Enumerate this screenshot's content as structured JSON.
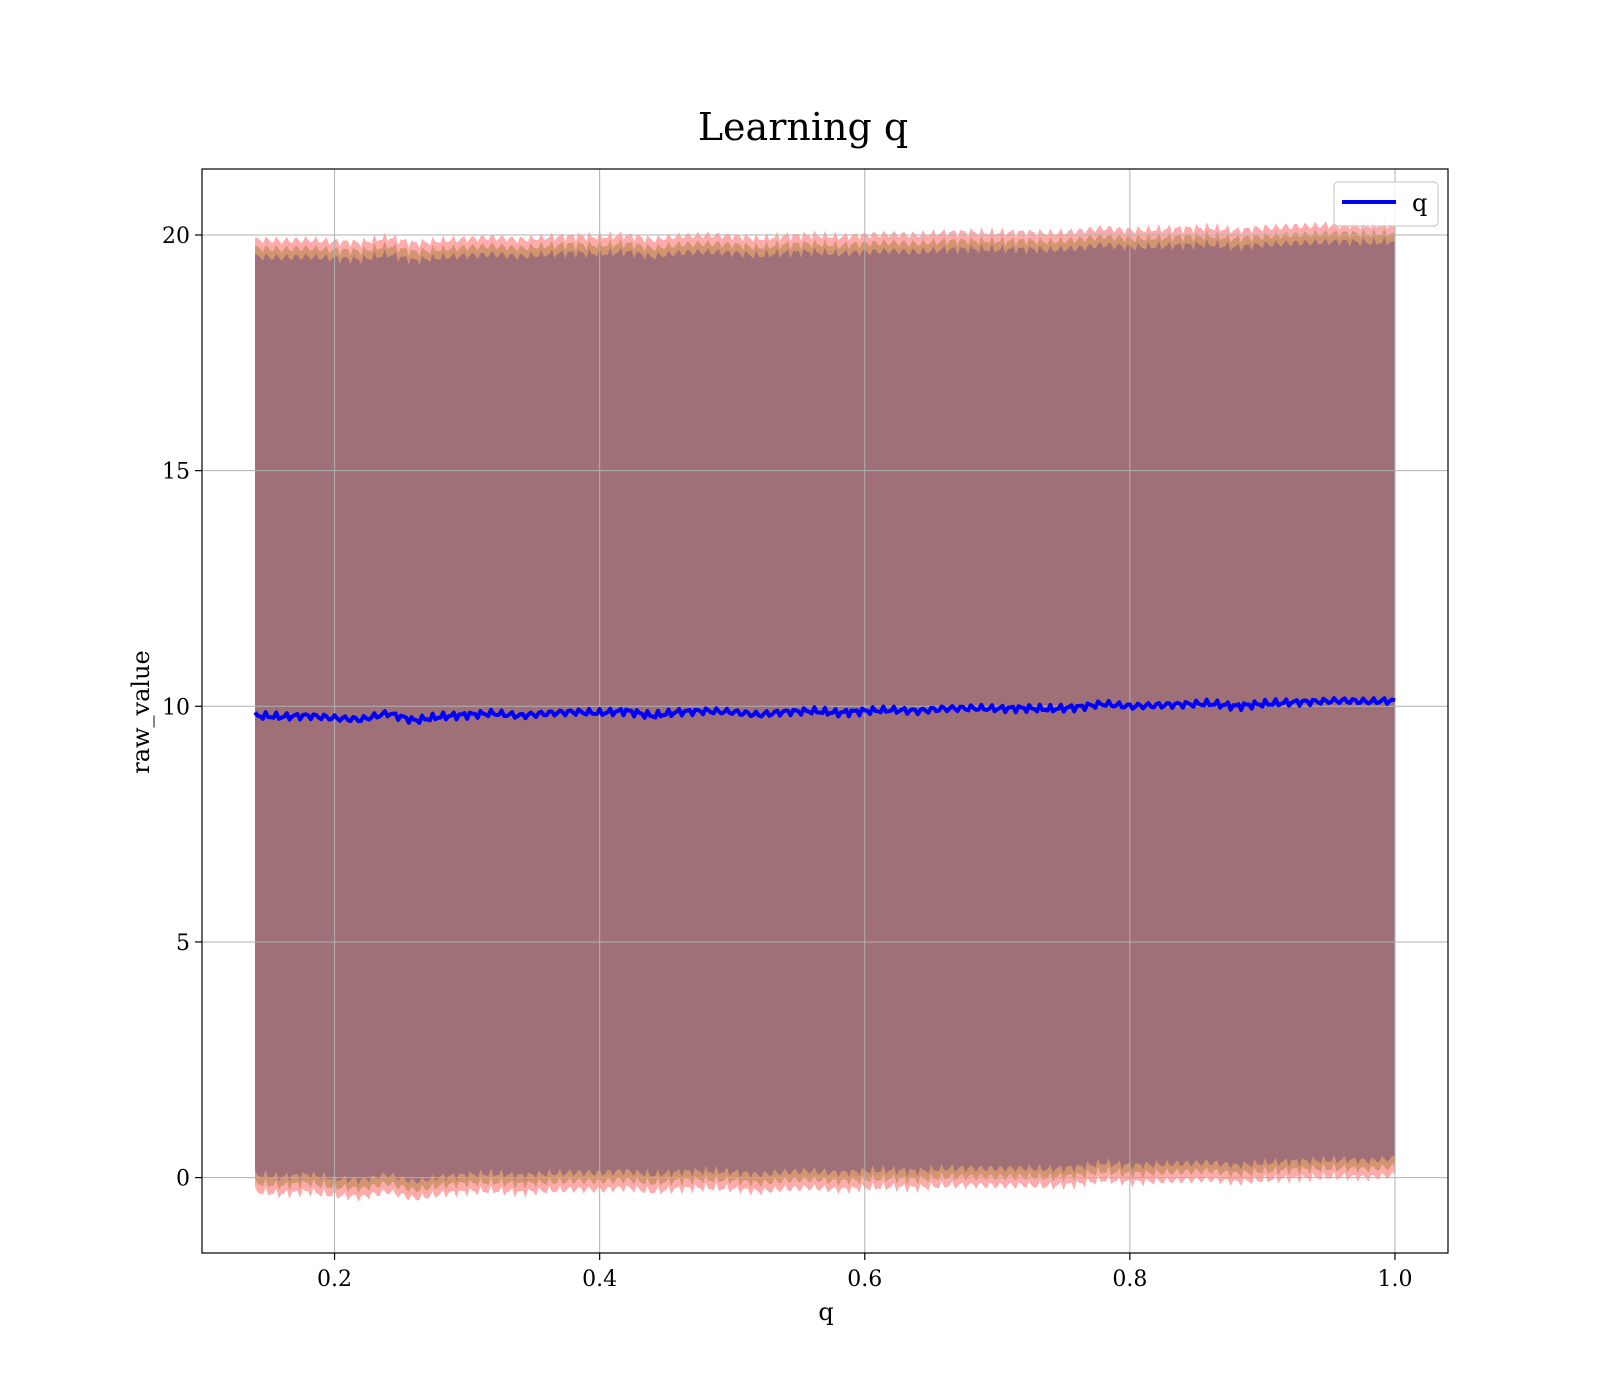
{
  "chart_data": {
    "type": "line",
    "title": "Learning q",
    "xlabel": "q",
    "ylabel": "raw_value",
    "xlim": [
      0.1,
      1.04
    ],
    "ylim": [
      -1.6,
      21.4
    ],
    "xticks": [
      0.2,
      0.4,
      0.6,
      0.8,
      1.0
    ],
    "xtick_labels": [
      "0.2",
      "0.4",
      "0.6",
      "0.8",
      "1.0"
    ],
    "yticks": [
      0,
      5,
      10,
      15,
      20
    ],
    "ytick_labels": [
      "0",
      "5",
      "10",
      "15",
      "20"
    ],
    "grid": true,
    "legend": {
      "placement": "top-right",
      "entries": [
        "q"
      ]
    },
    "colors": {
      "line": "#0000ff",
      "band_outer": "#ff6666",
      "band_mid": "#c89060",
      "band_inner": "#a07078"
    },
    "series": [
      {
        "name": "q",
        "x": [
          0.14,
          0.16,
          0.18,
          0.2,
          0.22,
          0.24,
          0.26,
          0.28,
          0.3,
          0.32,
          0.34,
          0.36,
          0.38,
          0.4,
          0.42,
          0.44,
          0.46,
          0.48,
          0.5,
          0.52,
          0.54,
          0.56,
          0.58,
          0.6,
          0.62,
          0.64,
          0.66,
          0.68,
          0.7,
          0.72,
          0.74,
          0.76,
          0.78,
          0.8,
          0.82,
          0.84,
          0.86,
          0.88,
          0.9,
          0.92,
          0.94,
          0.96,
          0.98,
          1.0
        ],
        "y": [
          9.8,
          9.78,
          9.8,
          9.75,
          9.72,
          9.85,
          9.7,
          9.78,
          9.82,
          9.85,
          9.8,
          9.85,
          9.88,
          9.86,
          9.9,
          9.8,
          9.88,
          9.9,
          9.88,
          9.82,
          9.88,
          9.9,
          9.86,
          9.9,
          9.92,
          9.9,
          9.95,
          9.96,
          9.95,
          9.96,
          9.94,
          9.98,
          10.05,
          10.0,
          10.02,
          10.04,
          10.06,
          10.0,
          10.05,
          10.08,
          10.1,
          10.12,
          10.1,
          10.12
        ],
        "lower_outer": [
          -0.3,
          -0.35,
          -0.3,
          -0.38,
          -0.42,
          -0.3,
          -0.45,
          -0.35,
          -0.3,
          -0.28,
          -0.32,
          -0.28,
          -0.25,
          -0.26,
          -0.22,
          -0.3,
          -0.24,
          -0.22,
          -0.24,
          -0.3,
          -0.24,
          -0.22,
          -0.26,
          -0.22,
          -0.2,
          -0.22,
          -0.17,
          -0.16,
          -0.17,
          -0.16,
          -0.18,
          -0.14,
          -0.05,
          -0.1,
          -0.08,
          -0.06,
          -0.04,
          -0.1,
          -0.05,
          -0.02,
          0.0,
          0.02,
          0.0,
          0.05
        ],
        "upper_outer": [
          19.9,
          19.88,
          19.9,
          19.86,
          19.84,
          19.95,
          19.82,
          19.88,
          19.92,
          19.95,
          19.9,
          19.95,
          19.98,
          19.96,
          20.0,
          19.9,
          19.98,
          20.0,
          19.98,
          19.92,
          19.98,
          20.0,
          19.96,
          20.0,
          20.02,
          20.0,
          20.05,
          20.06,
          20.05,
          20.06,
          20.04,
          20.08,
          20.15,
          20.1,
          20.12,
          20.14,
          20.16,
          20.1,
          20.15,
          20.18,
          20.2,
          20.22,
          20.2,
          20.22
        ]
      }
    ]
  }
}
